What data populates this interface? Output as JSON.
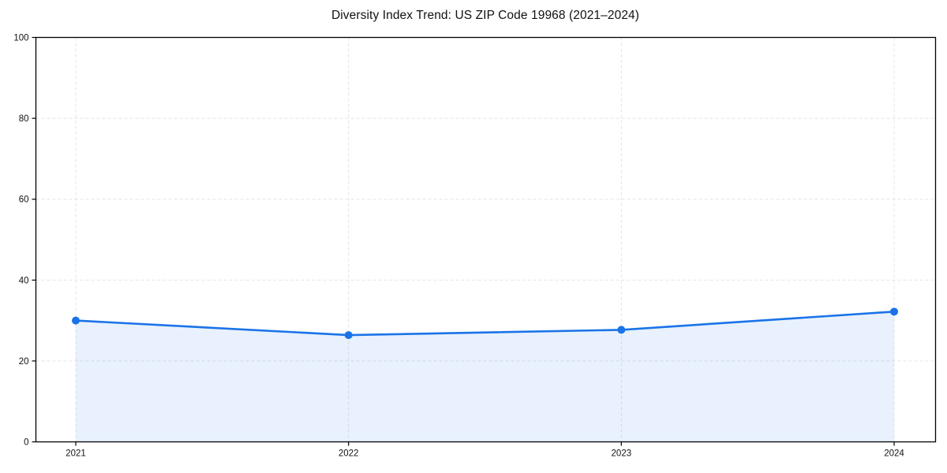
{
  "chart_data": {
    "type": "area",
    "title": "Diversity Index Trend: US ZIP Code 19968 (2021–2024)",
    "categories": [
      "2021",
      "2022",
      "2023",
      "2024"
    ],
    "values": [
      30,
      26.4,
      27.7,
      32.2
    ],
    "xlabel": "",
    "ylabel": "",
    "ylim": [
      0,
      100
    ],
    "yticks": [
      0,
      20,
      40,
      60,
      80,
      100
    ],
    "grid": true,
    "grid_style": "dashed",
    "legend_position": "none",
    "colors": {
      "line": "#1a73e8",
      "marker": "#1a73e8",
      "area_fill": "rgba(26,115,232,0.10)",
      "grid": "#e4e4e4",
      "axis": "#000000",
      "text": "#111111",
      "background": "#ffffff"
    }
  }
}
